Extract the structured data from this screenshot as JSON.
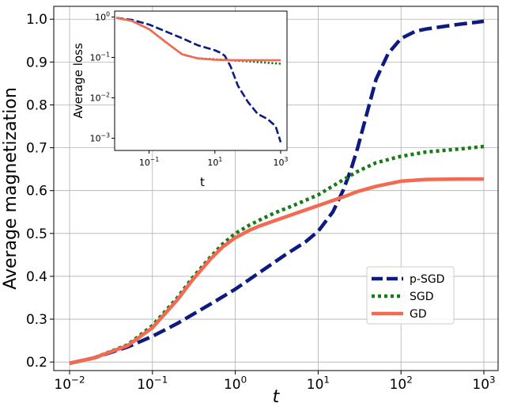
{
  "chart_data": [
    {
      "id": "main",
      "type": "line",
      "xlabel": "t",
      "ylabel": "Average magnetization",
      "xscale": "log",
      "xlim": [
        0.01,
        1000
      ],
      "ylim": [
        0.18,
        1.03
      ],
      "grid": true,
      "legend_position": "center-right",
      "x_ticks": [
        {
          "value": 0.01,
          "base": "10",
          "exp": "−2"
        },
        {
          "value": 0.1,
          "base": "10",
          "exp": "−1"
        },
        {
          "value": 1,
          "base": "10",
          "exp": "0"
        },
        {
          "value": 10,
          "base": "10",
          "exp": "1"
        },
        {
          "value": 100,
          "base": "10",
          "exp": "2"
        },
        {
          "value": 1000,
          "base": "10",
          "exp": "3"
        }
      ],
      "y_ticks": [
        {
          "value": 0.2,
          "label": "0.2"
        },
        {
          "value": 0.3,
          "label": "0.3"
        },
        {
          "value": 0.4,
          "label": "0.4"
        },
        {
          "value": 0.5,
          "label": "0.5"
        },
        {
          "value": 0.6,
          "label": "0.6"
        },
        {
          "value": 0.7,
          "label": "0.7"
        },
        {
          "value": 0.8,
          "label": "0.8"
        },
        {
          "value": 0.9,
          "label": "0.9"
        },
        {
          "value": 1.0,
          "label": "1.0"
        }
      ],
      "series": [
        {
          "name": "p-SGD",
          "color": "#0d1a80",
          "dash": "dashed",
          "x": [
            0.01,
            0.02,
            0.05,
            0.1,
            0.2,
            0.5,
            1,
            2,
            4,
            7,
            10,
            15,
            20,
            25,
            30,
            40,
            50,
            70,
            100,
            150,
            200,
            300,
            500,
            1000
          ],
          "y": [
            0.197,
            0.21,
            0.235,
            0.26,
            0.29,
            0.335,
            0.37,
            0.41,
            0.45,
            0.48,
            0.505,
            0.55,
            0.6,
            0.65,
            0.7,
            0.79,
            0.86,
            0.92,
            0.955,
            0.972,
            0.977,
            0.982,
            0.988,
            0.995
          ]
        },
        {
          "name": "SGD",
          "color": "#1a7a1a",
          "dash": "dotted",
          "x": [
            0.01,
            0.02,
            0.05,
            0.1,
            0.2,
            0.3,
            0.5,
            0.7,
            1,
            1.5,
            2,
            3,
            5,
            10,
            20,
            30,
            50,
            100,
            200,
            500,
            1000
          ],
          "y": [
            0.197,
            0.21,
            0.24,
            0.285,
            0.35,
            0.395,
            0.445,
            0.475,
            0.5,
            0.52,
            0.532,
            0.548,
            0.565,
            0.59,
            0.625,
            0.645,
            0.665,
            0.68,
            0.69,
            0.697,
            0.703
          ]
        },
        {
          "name": "GD",
          "color": "#f36a52",
          "dash": "solid",
          "x": [
            0.01,
            0.02,
            0.05,
            0.1,
            0.2,
            0.3,
            0.5,
            0.7,
            1,
            1.5,
            2,
            3,
            5,
            10,
            20,
            30,
            50,
            100,
            200,
            500,
            1000
          ],
          "y": [
            0.197,
            0.21,
            0.238,
            0.28,
            0.345,
            0.39,
            0.44,
            0.468,
            0.49,
            0.508,
            0.518,
            0.53,
            0.545,
            0.565,
            0.585,
            0.598,
            0.61,
            0.622,
            0.626,
            0.627,
            0.627
          ]
        }
      ]
    },
    {
      "id": "inset",
      "type": "line",
      "xlabel": "t",
      "ylabel": "Average loss",
      "xscale": "log",
      "yscale": "log",
      "xlim": [
        0.01,
        1000
      ],
      "ylim": [
        0.0005,
        1.4
      ],
      "grid": false,
      "x_ticks": [
        {
          "value": 0.1,
          "base": "10",
          "exp": "−1"
        },
        {
          "value": 10,
          "base": "10",
          "exp": "1"
        },
        {
          "value": 1000,
          "base": "10",
          "exp": "3"
        }
      ],
      "y_ticks": [
        {
          "value": 1,
          "base": "10",
          "exp": "0"
        },
        {
          "value": 0.1,
          "base": "10",
          "exp": "−1"
        },
        {
          "value": 0.01,
          "base": "10",
          "exp": "−2"
        },
        {
          "value": 0.001,
          "base": "10",
          "exp": "−3"
        }
      ],
      "series": [
        {
          "name": "p-SGD",
          "color": "#0d1a80",
          "dash": "dashed",
          "x": [
            0.01,
            0.03,
            0.1,
            0.3,
            1,
            3,
            10,
            15,
            20,
            30,
            50,
            100,
            200,
            400,
            700,
            1000
          ],
          "y": [
            0.95,
            0.85,
            0.65,
            0.45,
            0.3,
            0.2,
            0.15,
            0.13,
            0.11,
            0.06,
            0.02,
            0.008,
            0.004,
            0.003,
            0.002,
            0.0008
          ]
        },
        {
          "name": "SGD",
          "color": "#1a7a1a",
          "dash": "dotted",
          "x": [
            0.01,
            0.03,
            0.1,
            0.3,
            1,
            3,
            10,
            30,
            100,
            300,
            1000
          ],
          "y": [
            0.95,
            0.8,
            0.5,
            0.25,
            0.12,
            0.095,
            0.09,
            0.085,
            0.08,
            0.075,
            0.07
          ]
        },
        {
          "name": "GD",
          "color": "#f36a52",
          "dash": "solid",
          "x": [
            0.01,
            0.03,
            0.1,
            0.3,
            1,
            3,
            10,
            30,
            100,
            300,
            1000
          ],
          "y": [
            0.95,
            0.8,
            0.5,
            0.25,
            0.12,
            0.095,
            0.088,
            0.086,
            0.085,
            0.085,
            0.085
          ]
        }
      ]
    }
  ]
}
